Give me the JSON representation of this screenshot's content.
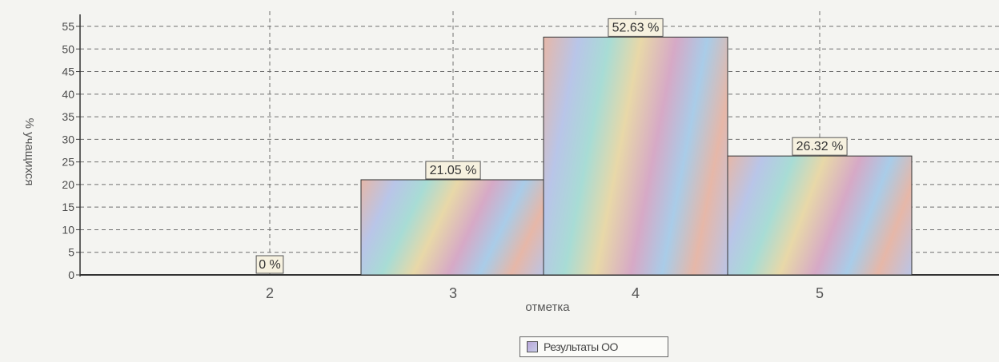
{
  "chart_data": {
    "type": "bar",
    "categories": [
      "2",
      "3",
      "4",
      "5"
    ],
    "series": [
      {
        "name": "Результаты ОО",
        "values": [
          0,
          21.05,
          52.63,
          26.32
        ],
        "labels": [
          "0 %",
          "21.05 %",
          "52.63 %",
          "26.32 %"
        ]
      }
    ],
    "xlabel": "отметка",
    "ylabel": "% учащихся",
    "ylim": [
      0,
      55
    ],
    "yticks": [
      0,
      5,
      10,
      15,
      20,
      25,
      30,
      35,
      40,
      45,
      50,
      55
    ],
    "grid": true,
    "legend": "bottom-center"
  },
  "colors": {
    "background": "#f4f4f1",
    "grid": "#6f6f6f",
    "bar_outline": "#333333",
    "label_box": "#f6f1df"
  }
}
